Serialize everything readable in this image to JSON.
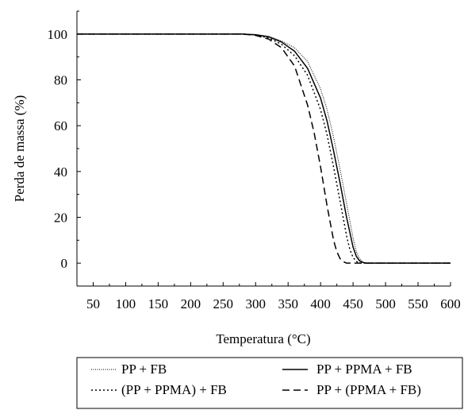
{
  "chart_data": {
    "type": "line",
    "xlabel": "Temperatura (°C)",
    "ylabel": "Perda de massa (%)",
    "xlim": [
      25,
      600
    ],
    "ylim": [
      -10,
      110
    ],
    "xticks": [
      "50",
      "100",
      "150",
      "200",
      "250",
      "300",
      "350",
      "400",
      "450",
      "500",
      "550",
      "600"
    ],
    "yticks": [
      "0",
      "20",
      "40",
      "60",
      "80",
      "100"
    ],
    "grid": false,
    "legend_position": "bottom",
    "series": [
      {
        "name": "PP + FB",
        "style": "fine-dotted",
        "color": "#000000",
        "x": [
          25,
          250,
          280,
          300,
          320,
          340,
          360,
          380,
          400,
          410,
          420,
          430,
          440,
          450,
          455,
          460,
          465,
          470,
          480,
          500,
          600
        ],
        "y": [
          100,
          100,
          100,
          99.8,
          99,
          97,
          94,
          88,
          76,
          67,
          55,
          41,
          26,
          11,
          5,
          2,
          0.5,
          0,
          0,
          0,
          0
        ]
      },
      {
        "name": "PP + PPMA + FB",
        "style": "solid",
        "color": "#000000",
        "x": [
          25,
          250,
          280,
          300,
          320,
          340,
          360,
          380,
          400,
          410,
          420,
          430,
          440,
          450,
          455,
          460,
          465,
          470,
          480,
          600
        ],
        "y": [
          100,
          100,
          100,
          99.7,
          98.8,
          96.5,
          92.5,
          85,
          72,
          62,
          49,
          35,
          20,
          7,
          3,
          1,
          0.3,
          0,
          0,
          0
        ]
      },
      {
        "name": "(PP + PPMA) + FB",
        "style": "dotted",
        "color": "#000000",
        "x": [
          25,
          250,
          280,
          300,
          320,
          340,
          360,
          380,
          400,
          410,
          420,
          430,
          440,
          445,
          450,
          455,
          460,
          470,
          600
        ],
        "y": [
          100,
          100,
          100,
          99.6,
          98.3,
          95.5,
          90.5,
          82,
          67,
          56,
          42,
          27,
          12,
          6,
          2.5,
          0.8,
          0,
          0,
          0
        ]
      },
      {
        "name": "PP + (PPMA + FB)",
        "style": "dashed",
        "color": "#000000",
        "x": [
          25,
          250,
          280,
          300,
          320,
          340,
          360,
          380,
          390,
          400,
          410,
          420,
          425,
          430,
          435,
          440,
          450,
          600
        ],
        "y": [
          100,
          100,
          100,
          99.4,
          97.8,
          94,
          86,
          69,
          57,
          42,
          25,
          10,
          5,
          2,
          0.7,
          0,
          0,
          0
        ]
      }
    ]
  }
}
